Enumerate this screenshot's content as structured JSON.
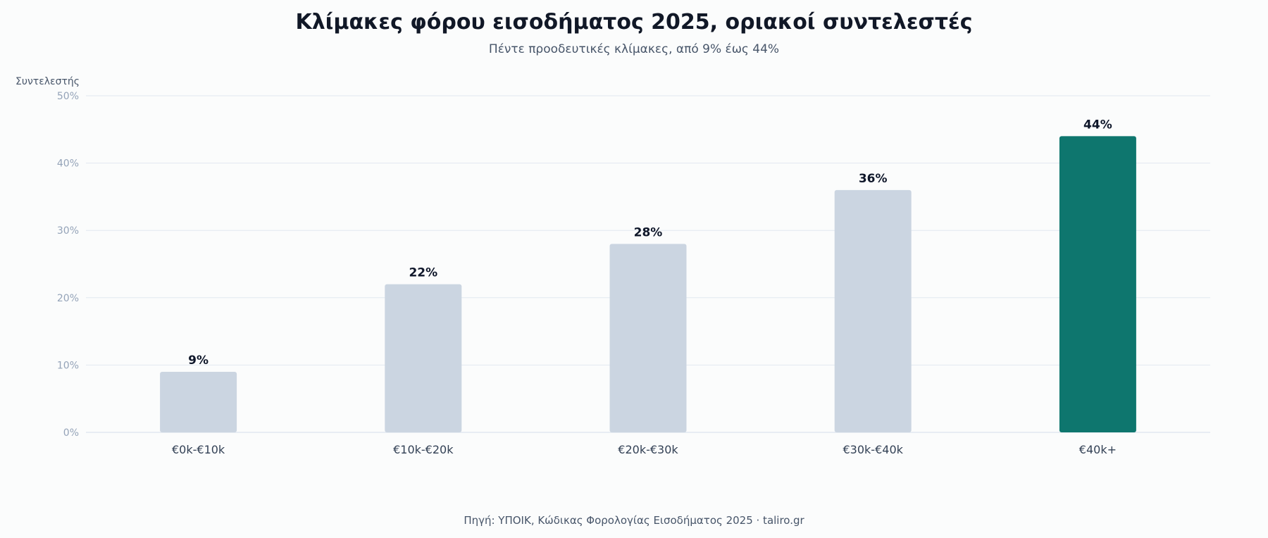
{
  "header": {
    "title": "Κλίμακες φόρου εισοδήματος 2025, οριακοί συντελεστές",
    "subtitle": "Πέντε προοδευτικές κλίμακες, από 9% έως 44%"
  },
  "footer": {
    "source": "Πηγή: ΥΠΟΙΚ, Κώδικας Φορολογίας Εισοδήματος 2025 · taliro.gr"
  },
  "colors": {
    "bar": "#cbd5e1",
    "highlight": "#0e766e"
  },
  "chart_data": {
    "type": "bar",
    "title": "Κλίμακες φόρου εισοδήματος 2025, οριακοί συντελεστές",
    "subtitle": "Πέντε προοδευτικές κλίμακες, από 9% έως 44%",
    "xlabel": "",
    "ylabel": "Συντελεστής",
    "categories": [
      "€0k-€10k",
      "€10k-€20k",
      "€20k-€30k",
      "€30k-€40k",
      "€40k+"
    ],
    "values": [
      9,
      22,
      28,
      36,
      44
    ],
    "value_labels": [
      "9%",
      "22%",
      "28%",
      "36%",
      "44%"
    ],
    "highlight_index": 4,
    "ylim": [
      0,
      50
    ],
    "yticks": [
      0,
      10,
      20,
      30,
      40,
      50
    ],
    "ytick_labels": [
      "0%",
      "10%",
      "20%",
      "30%",
      "40%",
      "50%"
    ],
    "grid": true,
    "legend": "none"
  }
}
